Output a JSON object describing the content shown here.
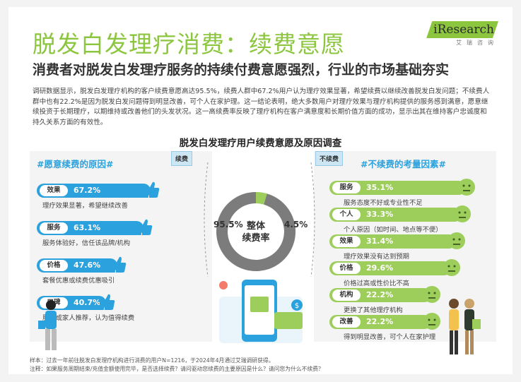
{
  "header": {
    "title": "脱发白发理疗消费：续费意愿",
    "logo_text": "iResearch",
    "logo_subtext": "艾瑞咨询",
    "subtitle": "消费者对脱发白发理疗服务的持续付费意愿强烈，行业的市场基础夯实"
  },
  "intro": {
    "paragraph": "调研数据显示，脱发白发理疗机构的客户续费意愿高达95.5%，续费人群中67.2%用户认为理疗效果显著，希望续费以继续改善脱发白发问题；不续费人群中也有22.2%是因为脱发白发问题得到明显改善，可个人在家护理。这一结论表明，绝大多数用户对理疗效果与理疗机构提供的服务感到满意，愿意继续投资于长期理疗，以期维持或改善他们的头发状况。这一高续费率反映了理疗机构在客户满意度和长期价值方面的成功，显示出其在维持客户忠诚度和持久关系方面的有效性。"
  },
  "chart_data": {
    "type": "bar",
    "title": "脱发白发理疗用户续费意愿及原因调查",
    "overall": {
      "center_label": "整体续费率",
      "renew": {
        "label": "续费",
        "value": 95.5,
        "display": "95.5%"
      },
      "no_renew": {
        "label": "不续费",
        "value": 4.5,
        "display": "4.5%"
      }
    },
    "renew_reasons": {
      "heading": "#愿意续费的原因#",
      "items": [
        {
          "label": "效果",
          "value": 67.2,
          "display": "67.2%",
          "desc": "理疗效果显著，希望继续改善"
        },
        {
          "label": "服务",
          "value": 63.1,
          "display": "63.1%",
          "desc": "服务体验好，信任该品牌/机构"
        },
        {
          "label": "价格",
          "value": 47.6,
          "display": "47.6%",
          "desc": "套餐优惠或续费优惠吸引"
        },
        {
          "label": "口碑",
          "value": 40.7,
          "display": "40.7%",
          "desc": "朋友或家人推荐，认为值得续费"
        }
      ]
    },
    "no_renew_reasons": {
      "heading": "#不续费的考量因素#",
      "items": [
        {
          "label": "服务",
          "value": 35.1,
          "display": "35.1%",
          "desc": "服务态度不好或专业性不足"
        },
        {
          "label": "个人",
          "value": 33.3,
          "display": "33.3%",
          "desc": "个人原因（如时间、地点等不便）"
        },
        {
          "label": "效果",
          "value": 31.4,
          "display": "31.4%",
          "desc": "理疗效果没有达到预期"
        },
        {
          "label": "价格",
          "value": 29.6,
          "display": "29.6%",
          "desc": "价格过高或性价比不高"
        },
        {
          "label": "机构",
          "value": 22.2,
          "display": "22.2%",
          "desc": "更换了其他理疗机构"
        },
        {
          "label": "改善",
          "value": 22.2,
          "display": "22.2%",
          "desc": "得到明显改善，可个人在家护理"
        }
      ]
    },
    "colors": {
      "green": "#9dcd5a",
      "blue": "#2ba2dd",
      "panel": "#f4f4f4",
      "ring_gray": "#7c7c7c"
    }
  },
  "footnotes": {
    "sample": "样本：过去一年前往脱发白发理疗机构进行消费的用户N=1216，于2024年4月通过艾瑞调研获得。",
    "remark": "注释：如果服务周期结束/充值金额使用完毕，是否选择续费？请问驱动您续费的主要原因是什么？请问您为什么不续费？"
  }
}
